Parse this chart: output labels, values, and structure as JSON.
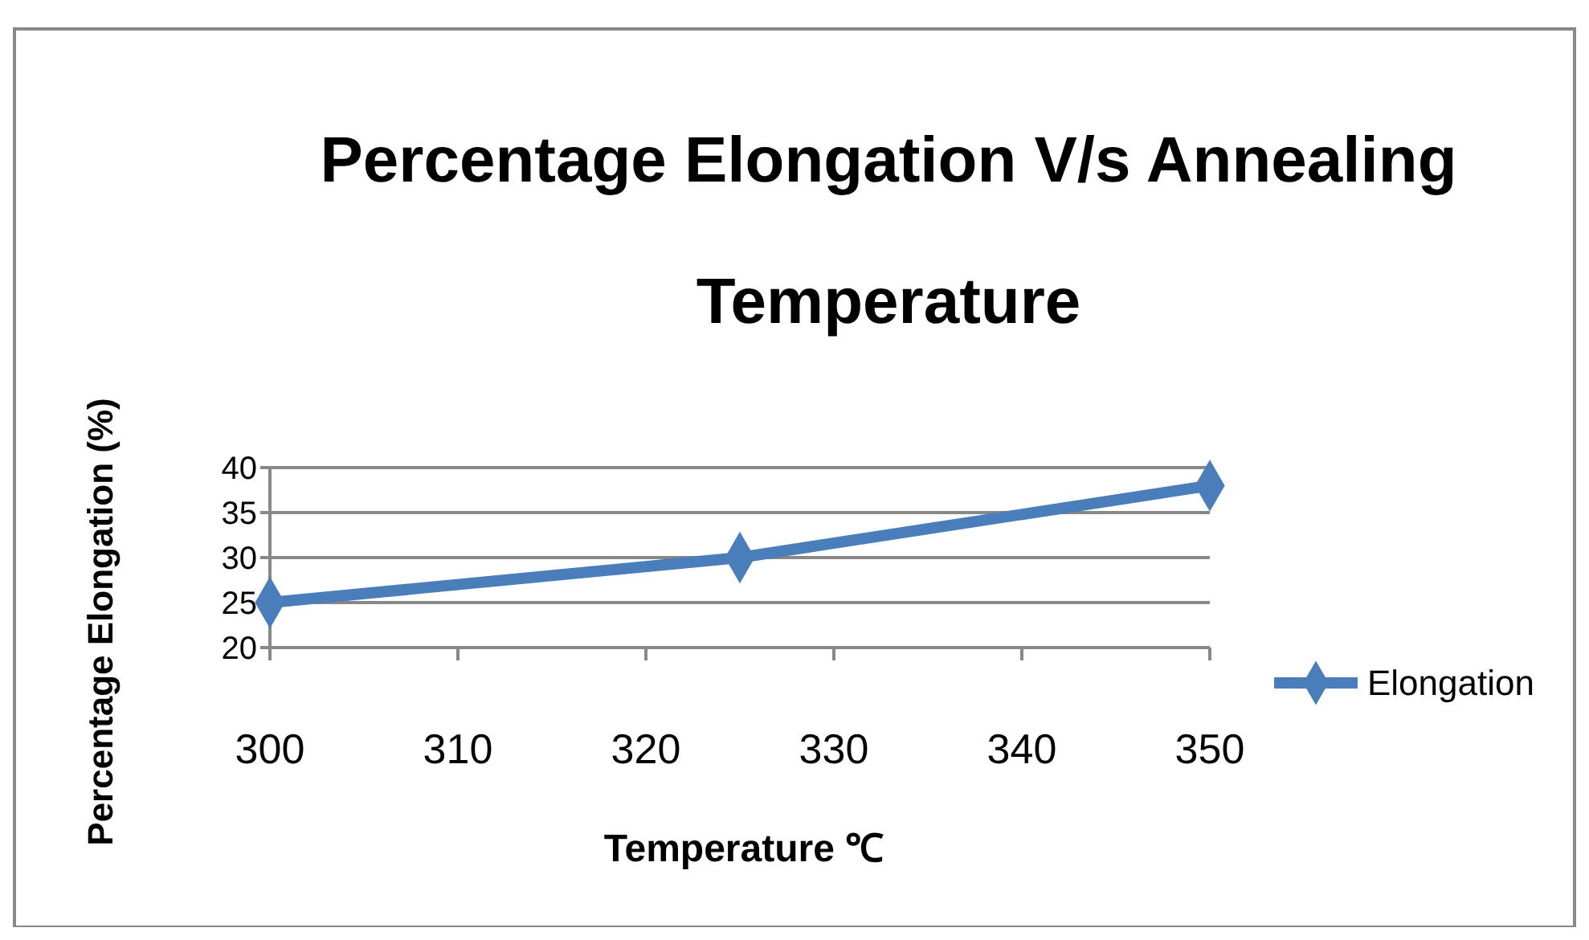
{
  "chart_data": {
    "type": "line",
    "title": "Percentage Elongation V/s Annealing Temperature",
    "xlabel": "Temperature ℃",
    "ylabel": "Percentage Elongation (%)",
    "x": [
      300,
      325,
      350
    ],
    "series": [
      {
        "name": "Elongation",
        "color": "#4a7ebb",
        "values": [
          25,
          30,
          38
        ]
      }
    ],
    "xlim": [
      300,
      350
    ],
    "xticks": [
      300,
      310,
      320,
      330,
      340,
      350
    ],
    "ylim": [
      20,
      40
    ],
    "yticks": [
      20,
      25,
      30,
      35,
      40
    ],
    "grid": "y",
    "legend": "right",
    "marker": "diamond",
    "line_style": "solid"
  }
}
